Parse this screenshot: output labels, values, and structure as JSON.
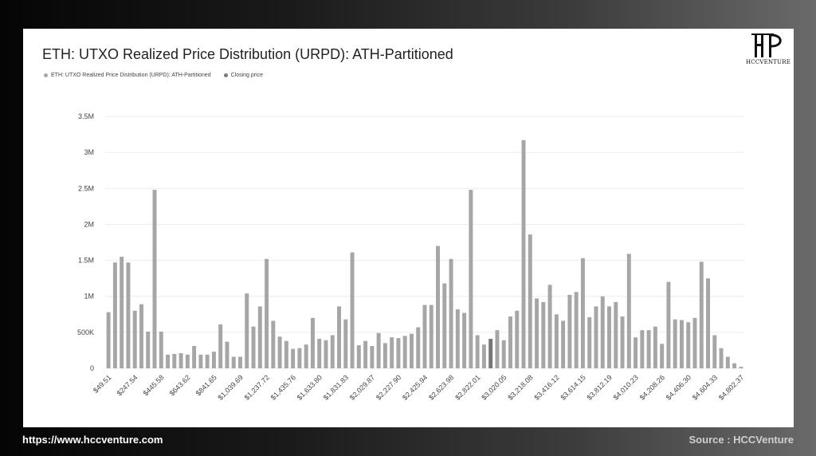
{
  "footer": {
    "url": "https://www.hccventure.com",
    "source": "Source : HCCVenture"
  },
  "logo": {
    "text": "HCCVENTURE",
    "icon": "hcc-monogram-icon"
  },
  "colors": {
    "bar": "#a6a6a6",
    "bar_dark": "#777777",
    "grid": "#ececec",
    "legend_series": "#a6a6a6",
    "legend_closing": "#7a7a7a"
  },
  "chart_data": {
    "type": "bar",
    "title": "ETH: UTXO Realized Price Distribution (URPD): ATH-Partitioned",
    "legend": [
      "ETH: UTXO Realized Price Distribution (URPD): ATH-Partitioned",
      "Closing price"
    ],
    "legend_placement": "top-left",
    "grid": true,
    "ylim": [
      0,
      3500000
    ],
    "yticks": [
      {
        "value": 0,
        "label": "0"
      },
      {
        "value": 500000,
        "label": "500K"
      },
      {
        "value": 1000000,
        "label": "1M"
      },
      {
        "value": 1500000,
        "label": "1.5M"
      },
      {
        "value": 2000000,
        "label": "2M"
      },
      {
        "value": 2500000,
        "label": "2.5M"
      },
      {
        "value": 3000000,
        "label": "3M"
      },
      {
        "value": 3500000,
        "label": "3.5M"
      }
    ],
    "xtick_labels": [
      "$49.51",
      "$247.54",
      "$445.58",
      "$643.62",
      "$841.65",
      "$1,039.69",
      "$1,237.72",
      "$1,435.76",
      "$1,633.80",
      "$1,831.83",
      "$2,029.87",
      "$2,227.90",
      "$2,425.94",
      "$2,623.98",
      "$2,822.01",
      "$3,020.05",
      "$3,218.08",
      "$3,416.12",
      "$3,614.15",
      "$3,812.19",
      "$4,010.23",
      "$4,208.26",
      "$4,406.30",
      "$4,604.33",
      "$4,802.37"
    ],
    "xtick_every": 4,
    "closing_price_bar_index": 58,
    "values": [
      780000,
      1470000,
      1550000,
      1470000,
      800000,
      890000,
      510000,
      2480000,
      510000,
      190000,
      200000,
      210000,
      190000,
      310000,
      190000,
      190000,
      230000,
      610000,
      370000,
      160000,
      160000,
      1040000,
      580000,
      860000,
      1520000,
      660000,
      440000,
      380000,
      270000,
      280000,
      330000,
      700000,
      410000,
      390000,
      460000,
      860000,
      680000,
      1610000,
      320000,
      380000,
      310000,
      490000,
      350000,
      430000,
      420000,
      450000,
      480000,
      570000,
      880000,
      880000,
      1700000,
      1180000,
      1520000,
      820000,
      770000,
      2480000,
      460000,
      330000,
      410000,
      530000,
      390000,
      720000,
      800000,
      3170000,
      1860000,
      970000,
      920000,
      1160000,
      750000,
      660000,
      1020000,
      1060000,
      1530000,
      710000,
      860000,
      1000000,
      860000,
      920000,
      720000,
      1590000,
      430000,
      530000,
      530000,
      580000,
      340000,
      1200000,
      680000,
      670000,
      640000,
      700000,
      1480000,
      1250000,
      460000,
      280000,
      160000,
      70000,
      20000
    ]
  }
}
